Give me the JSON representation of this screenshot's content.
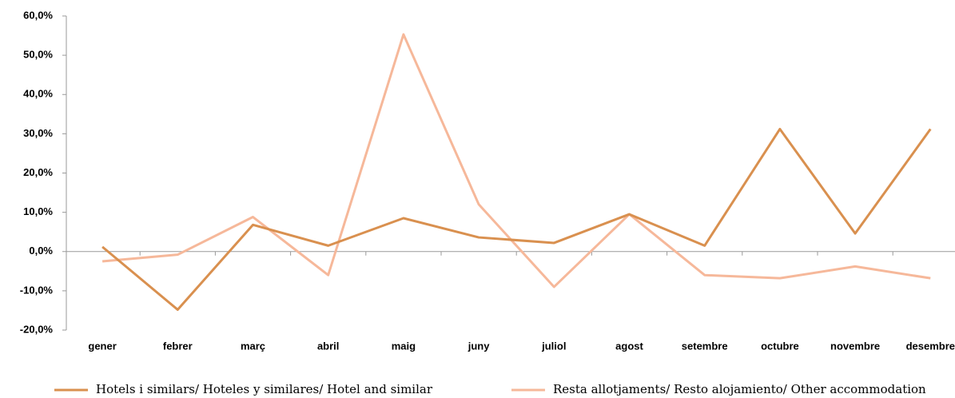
{
  "chart_data": {
    "type": "line",
    "categories": [
      "gener",
      "febrer",
      "març",
      "abril",
      "maig",
      "juny",
      "juliol",
      "agost",
      "setembre",
      "octubre",
      "novembre",
      "desembre"
    ],
    "series": [
      {
        "name": "Hotels i similars/ Hoteles y similares/ Hotel and similar",
        "color": "#d9904f",
        "values": [
          1.2,
          -14.8,
          6.8,
          1.5,
          8.5,
          3.6,
          2.2,
          9.5,
          1.5,
          31.2,
          4.6,
          31.2
        ]
      },
      {
        "name": "Resta allotjaments/ Resto alojamiento/ Other accommodation",
        "color": "#f6b89a",
        "values": [
          -2.5,
          -0.8,
          8.8,
          -6.0,
          55.3,
          12.0,
          -9.0,
          9.5,
          -6.0,
          -6.8,
          -3.8,
          -6.8
        ]
      }
    ],
    "ylim": [
      -20,
      60
    ],
    "yticks": [
      {
        "value": -20,
        "label": "-20,0%"
      },
      {
        "value": -10,
        "label": "-10,0%"
      },
      {
        "value": 0,
        "label": "0,0%"
      },
      {
        "value": 10,
        "label": "10,0%"
      },
      {
        "value": 20,
        "label": "20,0%"
      },
      {
        "value": 30,
        "label": "30,0%"
      },
      {
        "value": 40,
        "label": "40,0%"
      },
      {
        "value": 50,
        "label": "50,0%"
      },
      {
        "value": 60,
        "label": "60,0%"
      }
    ],
    "legend": "bottom"
  }
}
